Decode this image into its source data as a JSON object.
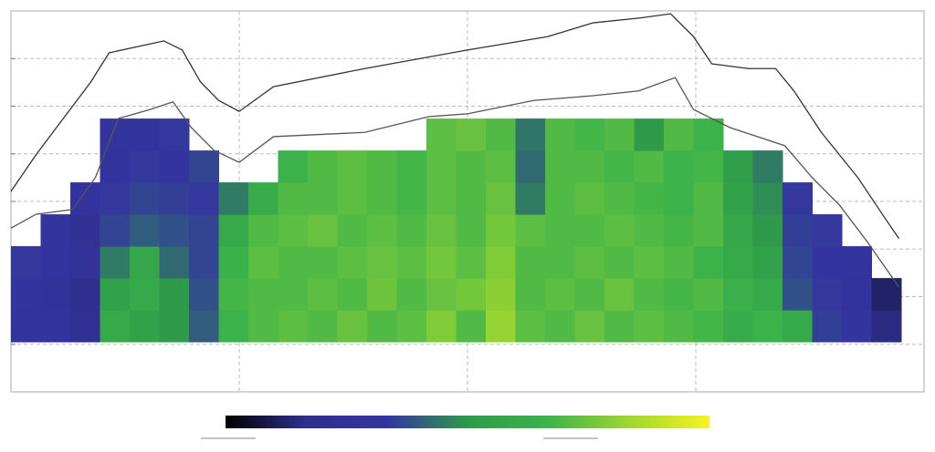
{
  "chart_data": {
    "type": "heatmap",
    "xlim": [
      0,
      4
    ],
    "xticks": [
      1,
      2,
      3
    ],
    "ylim": [
      0,
      8
    ],
    "yticks": [
      1,
      2,
      3,
      4,
      5,
      6,
      7
    ],
    "grid": true,
    "zlim": [
      0,
      1
    ],
    "colorscale": [
      "#000000",
      "#2f2f8f",
      "#3434a0",
      "#2e9a4a",
      "#3cb34a",
      "#9fd630",
      "#f5f51e"
    ],
    "bins": [
      0,
      0.13,
      0.26,
      0.39,
      0.52,
      0.65,
      0.78,
      0.91,
      1.04,
      1.17,
      1.3,
      1.43,
      1.56,
      1.69,
      1.82,
      1.95,
      2.08,
      2.21,
      2.34,
      2.47,
      2.6,
      2.73,
      2.86,
      2.99,
      3.12,
      3.25,
      3.38,
      3.51,
      3.64,
      3.77,
      3.9
    ],
    "y_bins": [
      1.05,
      1.72,
      2.39,
      3.06,
      3.73,
      4.4,
      5.07,
      5.74
    ],
    "z": [
      [
        0.3,
        0.3,
        0.2,
        0.6,
        0.55,
        0.5,
        0.4,
        0.66,
        0.7,
        0.72,
        0.7,
        0.74,
        0.7,
        0.72,
        0.78,
        0.7,
        0.82,
        0.72,
        0.7,
        0.74,
        0.7,
        0.72,
        0.7,
        0.68,
        0.62,
        0.66,
        0.6,
        0.35,
        0.32,
        0.15
      ],
      [
        0.32,
        0.28,
        0.18,
        0.55,
        0.6,
        0.5,
        0.38,
        0.68,
        0.7,
        0.7,
        0.72,
        0.7,
        0.75,
        0.7,
        0.74,
        0.76,
        0.8,
        0.7,
        0.72,
        0.7,
        0.74,
        0.7,
        0.68,
        0.7,
        0.64,
        0.6,
        0.38,
        0.34,
        0.3,
        0.12
      ],
      [
        0.34,
        0.3,
        0.25,
        0.45,
        0.58,
        0.42,
        0.36,
        0.65,
        0.72,
        0.7,
        0.7,
        0.72,
        0.74,
        0.72,
        0.76,
        0.72,
        0.78,
        0.7,
        0.7,
        0.72,
        0.7,
        0.72,
        0.7,
        0.66,
        0.6,
        0.55,
        0.36,
        0.33,
        0.32,
        null
      ],
      [
        null,
        0.32,
        0.22,
        0.36,
        0.4,
        0.38,
        0.36,
        0.6,
        0.7,
        0.72,
        0.74,
        0.7,
        0.72,
        0.7,
        0.74,
        0.7,
        0.76,
        0.72,
        0.7,
        0.7,
        0.72,
        0.7,
        0.68,
        0.7,
        0.58,
        0.5,
        0.35,
        0.34,
        null,
        null
      ],
      [
        null,
        null,
        0.3,
        0.34,
        0.36,
        0.35,
        0.34,
        0.45,
        0.62,
        0.7,
        0.7,
        0.72,
        0.7,
        0.68,
        0.72,
        0.7,
        0.74,
        0.45,
        0.7,
        0.72,
        0.7,
        0.68,
        0.66,
        0.7,
        0.55,
        0.48,
        0.34,
        null,
        null,
        null
      ],
      [
        null,
        null,
        null,
        0.3,
        0.34,
        0.33,
        0.36,
        null,
        null,
        0.66,
        0.7,
        0.72,
        0.7,
        0.68,
        0.72,
        0.7,
        0.72,
        0.42,
        0.7,
        0.7,
        0.68,
        0.7,
        0.66,
        0.68,
        0.52,
        0.45,
        null,
        null,
        null,
        null
      ],
      [
        null,
        null,
        null,
        0.32,
        0.3,
        0.34,
        null,
        null,
        null,
        null,
        null,
        null,
        null,
        null,
        0.72,
        0.74,
        0.7,
        0.44,
        0.7,
        0.68,
        0.7,
        0.5,
        0.7,
        0.66,
        null,
        null,
        null,
        null,
        null,
        null
      ]
    ],
    "series": [
      {
        "color": "#333333",
        "x": [
          0,
          0.11,
          0.35,
          0.43,
          0.67,
          0.75,
          0.83,
          0.91,
          1.0,
          1.15,
          1.55,
          2.0,
          2.35,
          2.55,
          2.75,
          2.89,
          2.99,
          3.07,
          3.23,
          3.35,
          3.43,
          3.55,
          3.71,
          3.83,
          3.89
        ],
        "values": [
          4.21,
          4.98,
          6.51,
          7.12,
          7.37,
          7.18,
          6.51,
          6.12,
          5.89,
          6.41,
          6.79,
          7.18,
          7.46,
          7.75,
          7.85,
          7.94,
          7.46,
          6.89,
          6.79,
          6.79,
          6.32,
          5.45,
          4.5,
          3.64,
          3.22
        ]
      },
      {
        "color": "#555555",
        "x": [
          0,
          0.11,
          0.27,
          0.37,
          0.47,
          0.61,
          0.71,
          0.79,
          0.89,
          1.0,
          1.15,
          1.55,
          1.83,
          2.0,
          2.29,
          2.55,
          2.75,
          2.91,
          2.99,
          3.15,
          3.39,
          3.51,
          3.63,
          3.75,
          3.89
        ],
        "values": [
          3.44,
          3.73,
          3.83,
          4.5,
          5.74,
          5.93,
          6.09,
          5.55,
          5.07,
          4.82,
          5.36,
          5.45,
          5.78,
          5.84,
          6.12,
          6.22,
          6.32,
          6.6,
          5.93,
          5.55,
          5.17,
          4.5,
          3.92,
          3.16,
          2.2
        ]
      }
    ]
  }
}
